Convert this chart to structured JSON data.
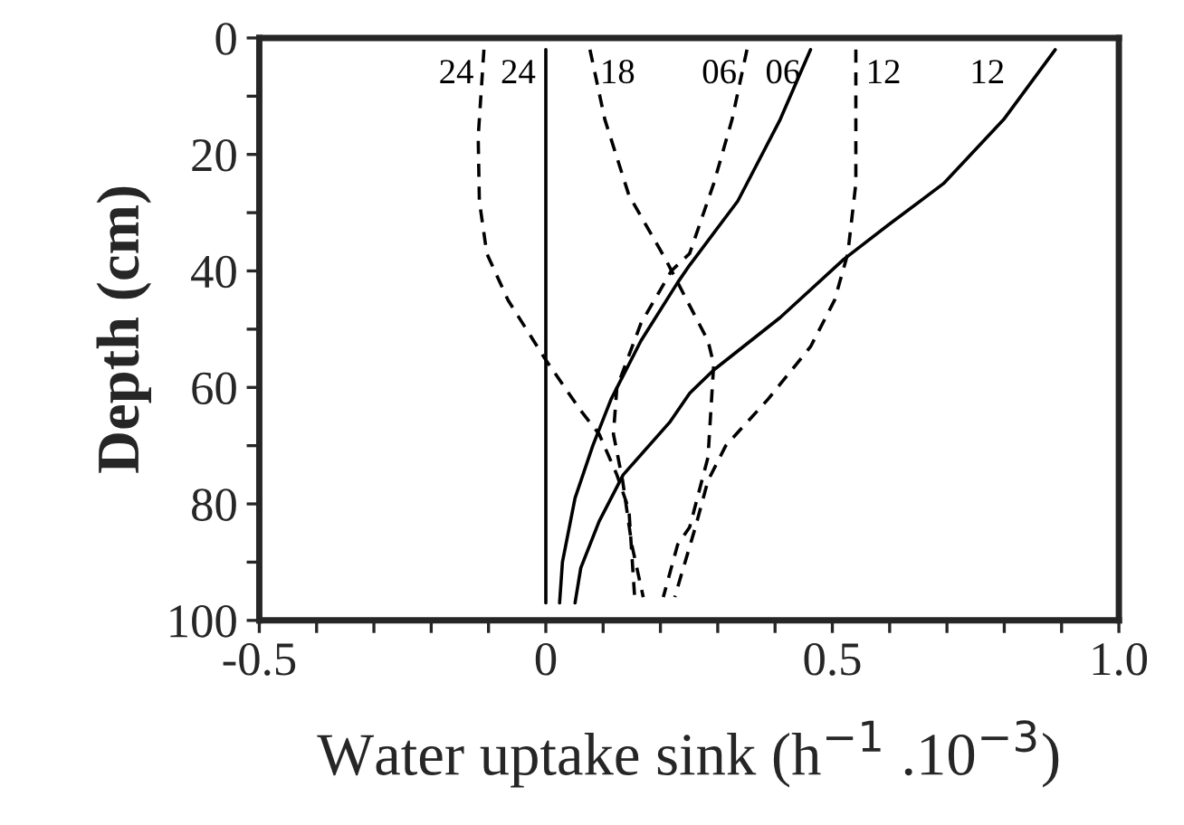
{
  "chart_data": {
    "type": "line",
    "xlabel": "Water uptake sink (h$^{−1}$ .10$^{−3}$)",
    "ylabel": "Depth (cm)",
    "xlim": [
      -0.5,
      1.0
    ],
    "xticks": [
      -0.5,
      {
        "value": -0.4,
        "label": null
      },
      {
        "value": -0.3,
        "label": null
      },
      {
        "value": -0.2,
        "label": null
      },
      {
        "value": -0.1,
        "label": null
      },
      0,
      {
        "value": 0.1,
        "label": null
      },
      {
        "value": 0.2,
        "label": null
      },
      {
        "value": 0.3,
        "label": null
      },
      {
        "value": 0.4,
        "label": null
      },
      0.5,
      {
        "value": 0.6,
        "label": null
      },
      {
        "value": 0.7,
        "label": null
      },
      {
        "value": 0.8,
        "label": null
      },
      {
        "value": 0.9,
        "label": null
      },
      {
        "value": 1.0,
        "label": "1.0"
      }
    ],
    "ylim": [
      100,
      0
    ],
    "yticks": [
      0,
      {
        "value": 10,
        "label": null
      },
      20,
      {
        "value": 30,
        "label": null
      },
      40,
      {
        "value": 50,
        "label": null
      },
      60,
      {
        "value": 70,
        "label": null
      },
      80,
      {
        "value": 90,
        "label": null
      },
      100
    ],
    "grid": false,
    "legend": false,
    "series": [
      {
        "name": "24",
        "color": "#000000",
        "line_style": "dashed",
        "x": [
          -0.108,
          -0.118,
          -0.116,
          -0.103,
          -0.066,
          -0.002,
          0.061,
          0.093,
          0.124,
          0.145,
          0.155
        ],
        "values": [
          2,
          17,
          28,
          37,
          45,
          55,
          64,
          68,
          75,
          81,
          96
        ]
      },
      {
        "name": "24",
        "color": "#000000",
        "line_style": "solid",
        "x": [
          0,
          0,
          0
        ],
        "values": [
          2,
          50,
          97
        ]
      },
      {
        "name": "18",
        "color": "#000000",
        "line_style": "dashed",
        "x": [
          0.077,
          0.103,
          0.145,
          0.209,
          0.283,
          0.293,
          0.283,
          0.251,
          0.23,
          0.205
        ],
        "values": [
          2,
          14,
          27,
          38,
          52,
          56,
          72,
          84,
          87,
          96
        ]
      },
      {
        "name": "06",
        "color": "#000000",
        "line_style": "dashed",
        "x": [
          0.351,
          0.325,
          0.293,
          0.251,
          0.219,
          0.166,
          0.124,
          0.118,
          0.134,
          0.15,
          0.17
        ],
        "values": [
          2,
          14,
          25,
          37,
          40,
          49,
          60,
          68,
          76,
          87,
          96
        ]
      },
      {
        "name": "06",
        "color": "#000000",
        "line_style": "solid",
        "x": [
          0.462,
          0.409,
          0.335,
          0.251,
          0.23,
          0.166,
          0.114,
          0.082,
          0.051,
          0.029,
          0.024
        ],
        "values": [
          2,
          14,
          28,
          39,
          42,
          52,
          62,
          70,
          79,
          90,
          97
        ]
      },
      {
        "name": "12",
        "color": "#000000",
        "line_style": "dashed",
        "x": [
          0.541,
          0.541,
          0.527,
          0.504,
          0.462,
          0.388,
          0.314,
          0.283,
          0.261,
          0.225
        ],
        "values": [
          2,
          25,
          37,
          45,
          53,
          62,
          70,
          76,
          84,
          96
        ]
      },
      {
        "name": "12",
        "color": "#000000",
        "line_style": "solid",
        "x": [
          0.889,
          0.799,
          0.694,
          0.599,
          0.52,
          0.409,
          0.293,
          0.251,
          0.216,
          0.135,
          0.093,
          0.061,
          0.051
        ],
        "values": [
          2,
          14,
          25,
          32,
          38,
          48,
          57,
          61,
          66,
          75,
          83,
          91,
          97
        ]
      }
    ]
  }
}
